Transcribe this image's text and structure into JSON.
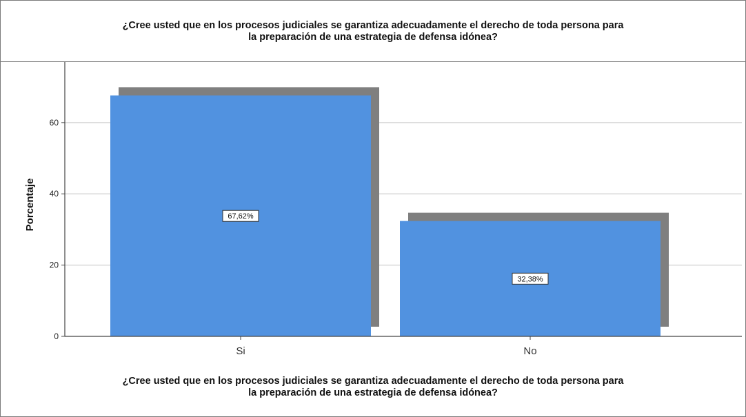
{
  "chart_title": {
    "line1": "¿Cree usted que en los procesos judiciales se garantiza adecuadamente el derecho de toda persona para",
    "line2": "la preparación de una estrategia de defensa idónea?"
  },
  "x_title": {
    "line1": "¿Cree usted que en los procesos judiciales se garantiza adecuadamente el derecho de toda persona para",
    "line2": "la preparación de una estrategia de defensa idónea?"
  },
  "chart_data": {
    "type": "bar",
    "title": "¿Cree usted que en los procesos judiciales se garantiza adecuadamente el derecho de toda persona para la preparación de una estrategia de defensa idónea?",
    "xlabel": "¿Cree usted que en los procesos judiciales se garantiza adecuadamente el derecho de toda persona para la preparación de una estrategia de defensa idónea?",
    "ylabel": "Porcentaje",
    "categories": [
      "Si",
      "No"
    ],
    "values": [
      67.62,
      32.38
    ],
    "data_labels": [
      "67,62%",
      "32,38%"
    ],
    "ylim": [
      0,
      77
    ],
    "yticks": [
      0,
      20,
      40,
      60
    ],
    "grid": true,
    "bar_color": "#5192e0",
    "shadow_color": "#7f7f7f"
  }
}
